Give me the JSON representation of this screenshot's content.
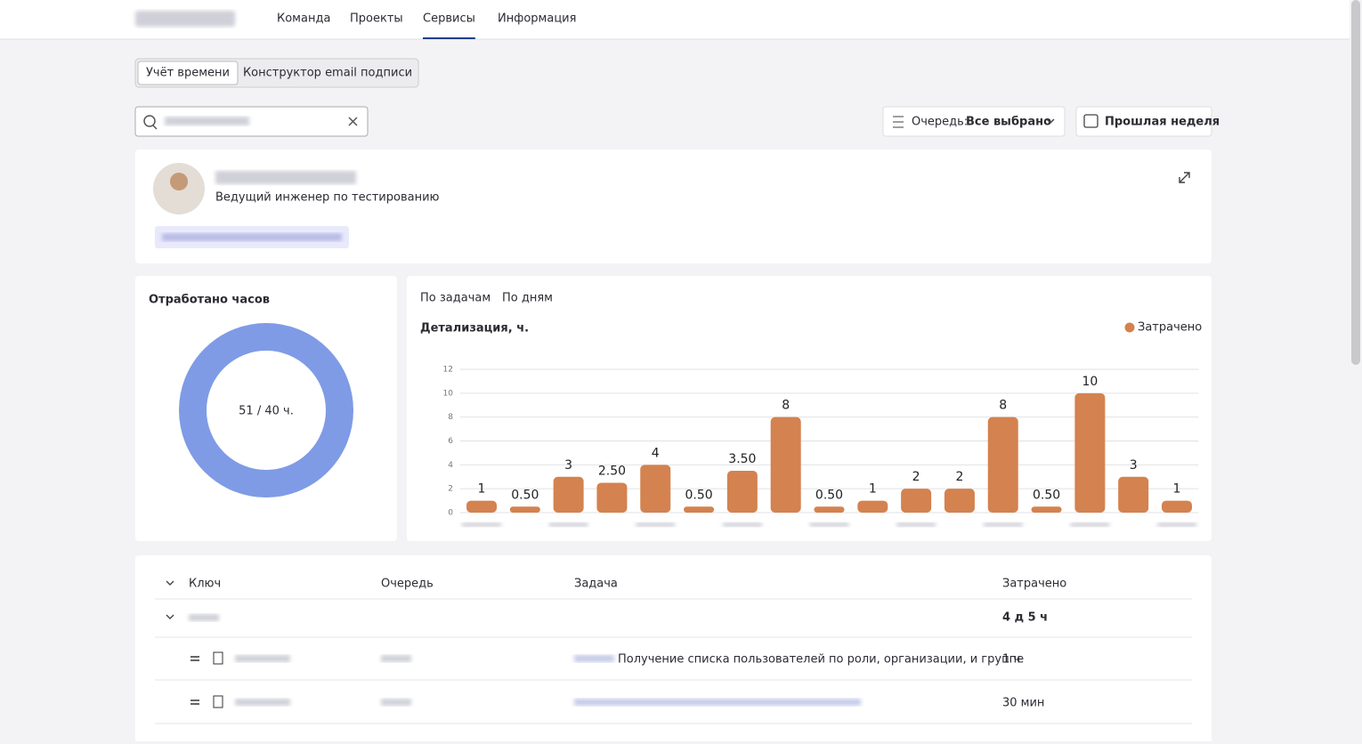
{
  "nav": {
    "items": [
      "Команда",
      "Проекты",
      "Сервисы",
      "Информация"
    ],
    "active": 2
  },
  "tabs": {
    "items": [
      "Учёт времени",
      "Конструктор email подписи"
    ],
    "active": 0
  },
  "filters": {
    "queue_label": "Очередь:",
    "queue_value": "Все выбрано",
    "period": "Прошлая неделя"
  },
  "profile": {
    "position": "Ведущий инженер по тестированию"
  },
  "hours": {
    "title": "Отработано часов",
    "label": "51 / 40 ч."
  },
  "chart_tabs": {
    "items": [
      "По задачам",
      "По дням"
    ],
    "active": 0
  },
  "chart_data": {
    "type": "bar",
    "title": "Детализация, ч.",
    "categories": [
      null,
      null,
      null,
      null,
      null,
      null,
      null,
      null,
      null,
      null,
      null,
      null,
      null,
      null,
      null,
      null,
      null
    ],
    "series": [
      {
        "name": "Затрачено",
        "color": "#d4824f",
        "values": [
          1,
          0.5,
          3,
          2.5,
          4,
          0.5,
          3.5,
          8,
          0.5,
          1,
          2,
          2,
          8,
          0.5,
          10,
          3,
          1
        ]
      }
    ],
    "value_labels": [
      "1",
      "0.50",
      "3",
      "2.50",
      "4",
      "0.50",
      "3.50",
      "8",
      "0.50",
      "1",
      "2",
      "2",
      "8",
      "0.50",
      "10",
      "3",
      "1"
    ],
    "ylim": [
      0,
      12
    ],
    "yticks": [
      0,
      2,
      4,
      6,
      8,
      10,
      12
    ],
    "grid": true,
    "legend": "top-right"
  },
  "table": {
    "columns": [
      "Ключ",
      "Очередь",
      "Задача",
      "Затрачено"
    ],
    "group_total": "4 д 5 ч",
    "rows": [
      {
        "task": "Получение списка пользователей по роли, организации, и группе",
        "spent": "1 ч"
      },
      {
        "task": null,
        "spent": "30 мин"
      }
    ]
  }
}
